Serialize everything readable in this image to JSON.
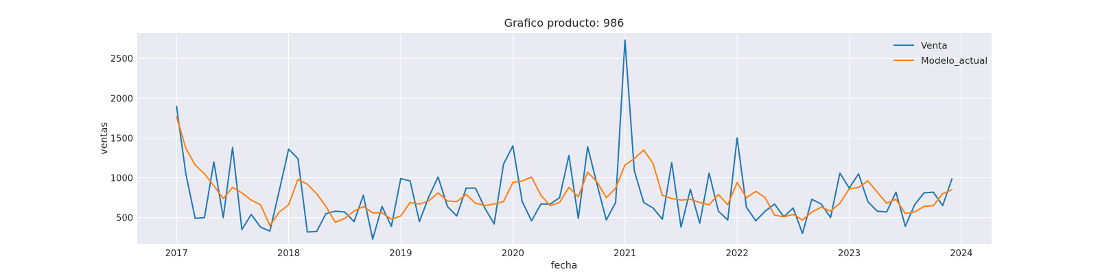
{
  "chart_data": {
    "type": "line",
    "title": "Grafico producto: 986",
    "xlabel": "fecha",
    "ylabel": "ventas",
    "xlim": [
      2016.65,
      2024.27
    ],
    "ylim": [
      170,
      2820
    ],
    "xticks": [
      {
        "value": 2017,
        "label": "2017"
      },
      {
        "value": 2018,
        "label": "2018"
      },
      {
        "value": 2019,
        "label": "2019"
      },
      {
        "value": 2020,
        "label": "2020"
      },
      {
        "value": 2021,
        "label": "2021"
      },
      {
        "value": 2022,
        "label": "2022"
      },
      {
        "value": 2023,
        "label": "2023"
      },
      {
        "value": 2024,
        "label": "2024"
      }
    ],
    "yticks": [
      {
        "value": 500,
        "label": "500"
      },
      {
        "value": 1000,
        "label": "1000"
      },
      {
        "value": 1500,
        "label": "1500"
      },
      {
        "value": 2000,
        "label": "2000"
      },
      {
        "value": 2500,
        "label": "2500"
      }
    ],
    "grid": true,
    "legend_position": "top-right",
    "x": [
      "2017-01",
      "2017-02",
      "2017-03",
      "2017-04",
      "2017-05",
      "2017-06",
      "2017-07",
      "2017-08",
      "2017-09",
      "2017-10",
      "2017-11",
      "2017-12",
      "2018-01",
      "2018-02",
      "2018-03",
      "2018-04",
      "2018-05",
      "2018-06",
      "2018-07",
      "2018-08",
      "2018-09",
      "2018-10",
      "2018-11",
      "2018-12",
      "2019-01",
      "2019-02",
      "2019-03",
      "2019-04",
      "2019-05",
      "2019-06",
      "2019-07",
      "2019-08",
      "2019-09",
      "2019-10",
      "2019-11",
      "2019-12",
      "2020-01",
      "2020-02",
      "2020-03",
      "2020-04",
      "2020-05",
      "2020-06",
      "2020-07",
      "2020-08",
      "2020-09",
      "2020-10",
      "2020-11",
      "2020-12",
      "2021-01",
      "2021-02",
      "2021-03",
      "2021-04",
      "2021-05",
      "2021-06",
      "2021-07",
      "2021-08",
      "2021-09",
      "2021-10",
      "2021-11",
      "2021-12",
      "2022-01",
      "2022-02",
      "2022-03",
      "2022-04",
      "2022-05",
      "2022-06",
      "2022-07",
      "2022-08",
      "2022-09",
      "2022-10",
      "2022-11",
      "2022-12",
      "2023-01",
      "2023-02",
      "2023-03",
      "2023-04",
      "2023-05",
      "2023-06",
      "2023-07",
      "2023-08",
      "2023-09",
      "2023-10",
      "2023-11",
      "2023-12"
    ],
    "series": [
      {
        "name": "Venta",
        "color": "#1f77b4",
        "values": [
          1900,
          1050,
          490,
          500,
          1200,
          500,
          1380,
          350,
          540,
          380,
          330,
          840,
          1360,
          1240,
          320,
          325,
          550,
          580,
          570,
          450,
          780,
          230,
          640,
          390,
          990,
          960,
          450,
          760,
          1010,
          640,
          520,
          870,
          870,
          620,
          420,
          1170,
          1400,
          700,
          460,
          670,
          670,
          750,
          1280,
          490,
          1390,
          920,
          470,
          690,
          2730,
          1090,
          690,
          620,
          480,
          1190,
          380,
          855,
          430,
          1060,
          580,
          470,
          1500,
          630,
          460,
          580,
          670,
          510,
          620,
          300,
          730,
          670,
          500,
          1060,
          870,
          1050,
          700,
          580,
          570,
          820,
          390,
          660,
          810,
          820,
          650,
          990
        ]
      },
      {
        "name": "Modelo_actual",
        "color": "#ff7f0e",
        "values": [
          1770,
          1370,
          1160,
          1050,
          900,
          740,
          880,
          810,
          720,
          660,
          400,
          570,
          660,
          980,
          920,
          800,
          640,
          440,
          490,
          580,
          640,
          560,
          560,
          480,
          520,
          690,
          670,
          710,
          810,
          710,
          700,
          790,
          680,
          650,
          670,
          700,
          940,
          960,
          1010,
          780,
          650,
          690,
          880,
          760,
          1070,
          950,
          750,
          870,
          1160,
          1240,
          1350,
          1180,
          780,
          740,
          720,
          730,
          690,
          660,
          790,
          660,
          940,
          750,
          830,
          750,
          530,
          510,
          540,
          470,
          570,
          630,
          580,
          680,
          860,
          880,
          960,
          820,
          680,
          730,
          550,
          570,
          640,
          650,
          800,
          850
        ]
      }
    ]
  }
}
